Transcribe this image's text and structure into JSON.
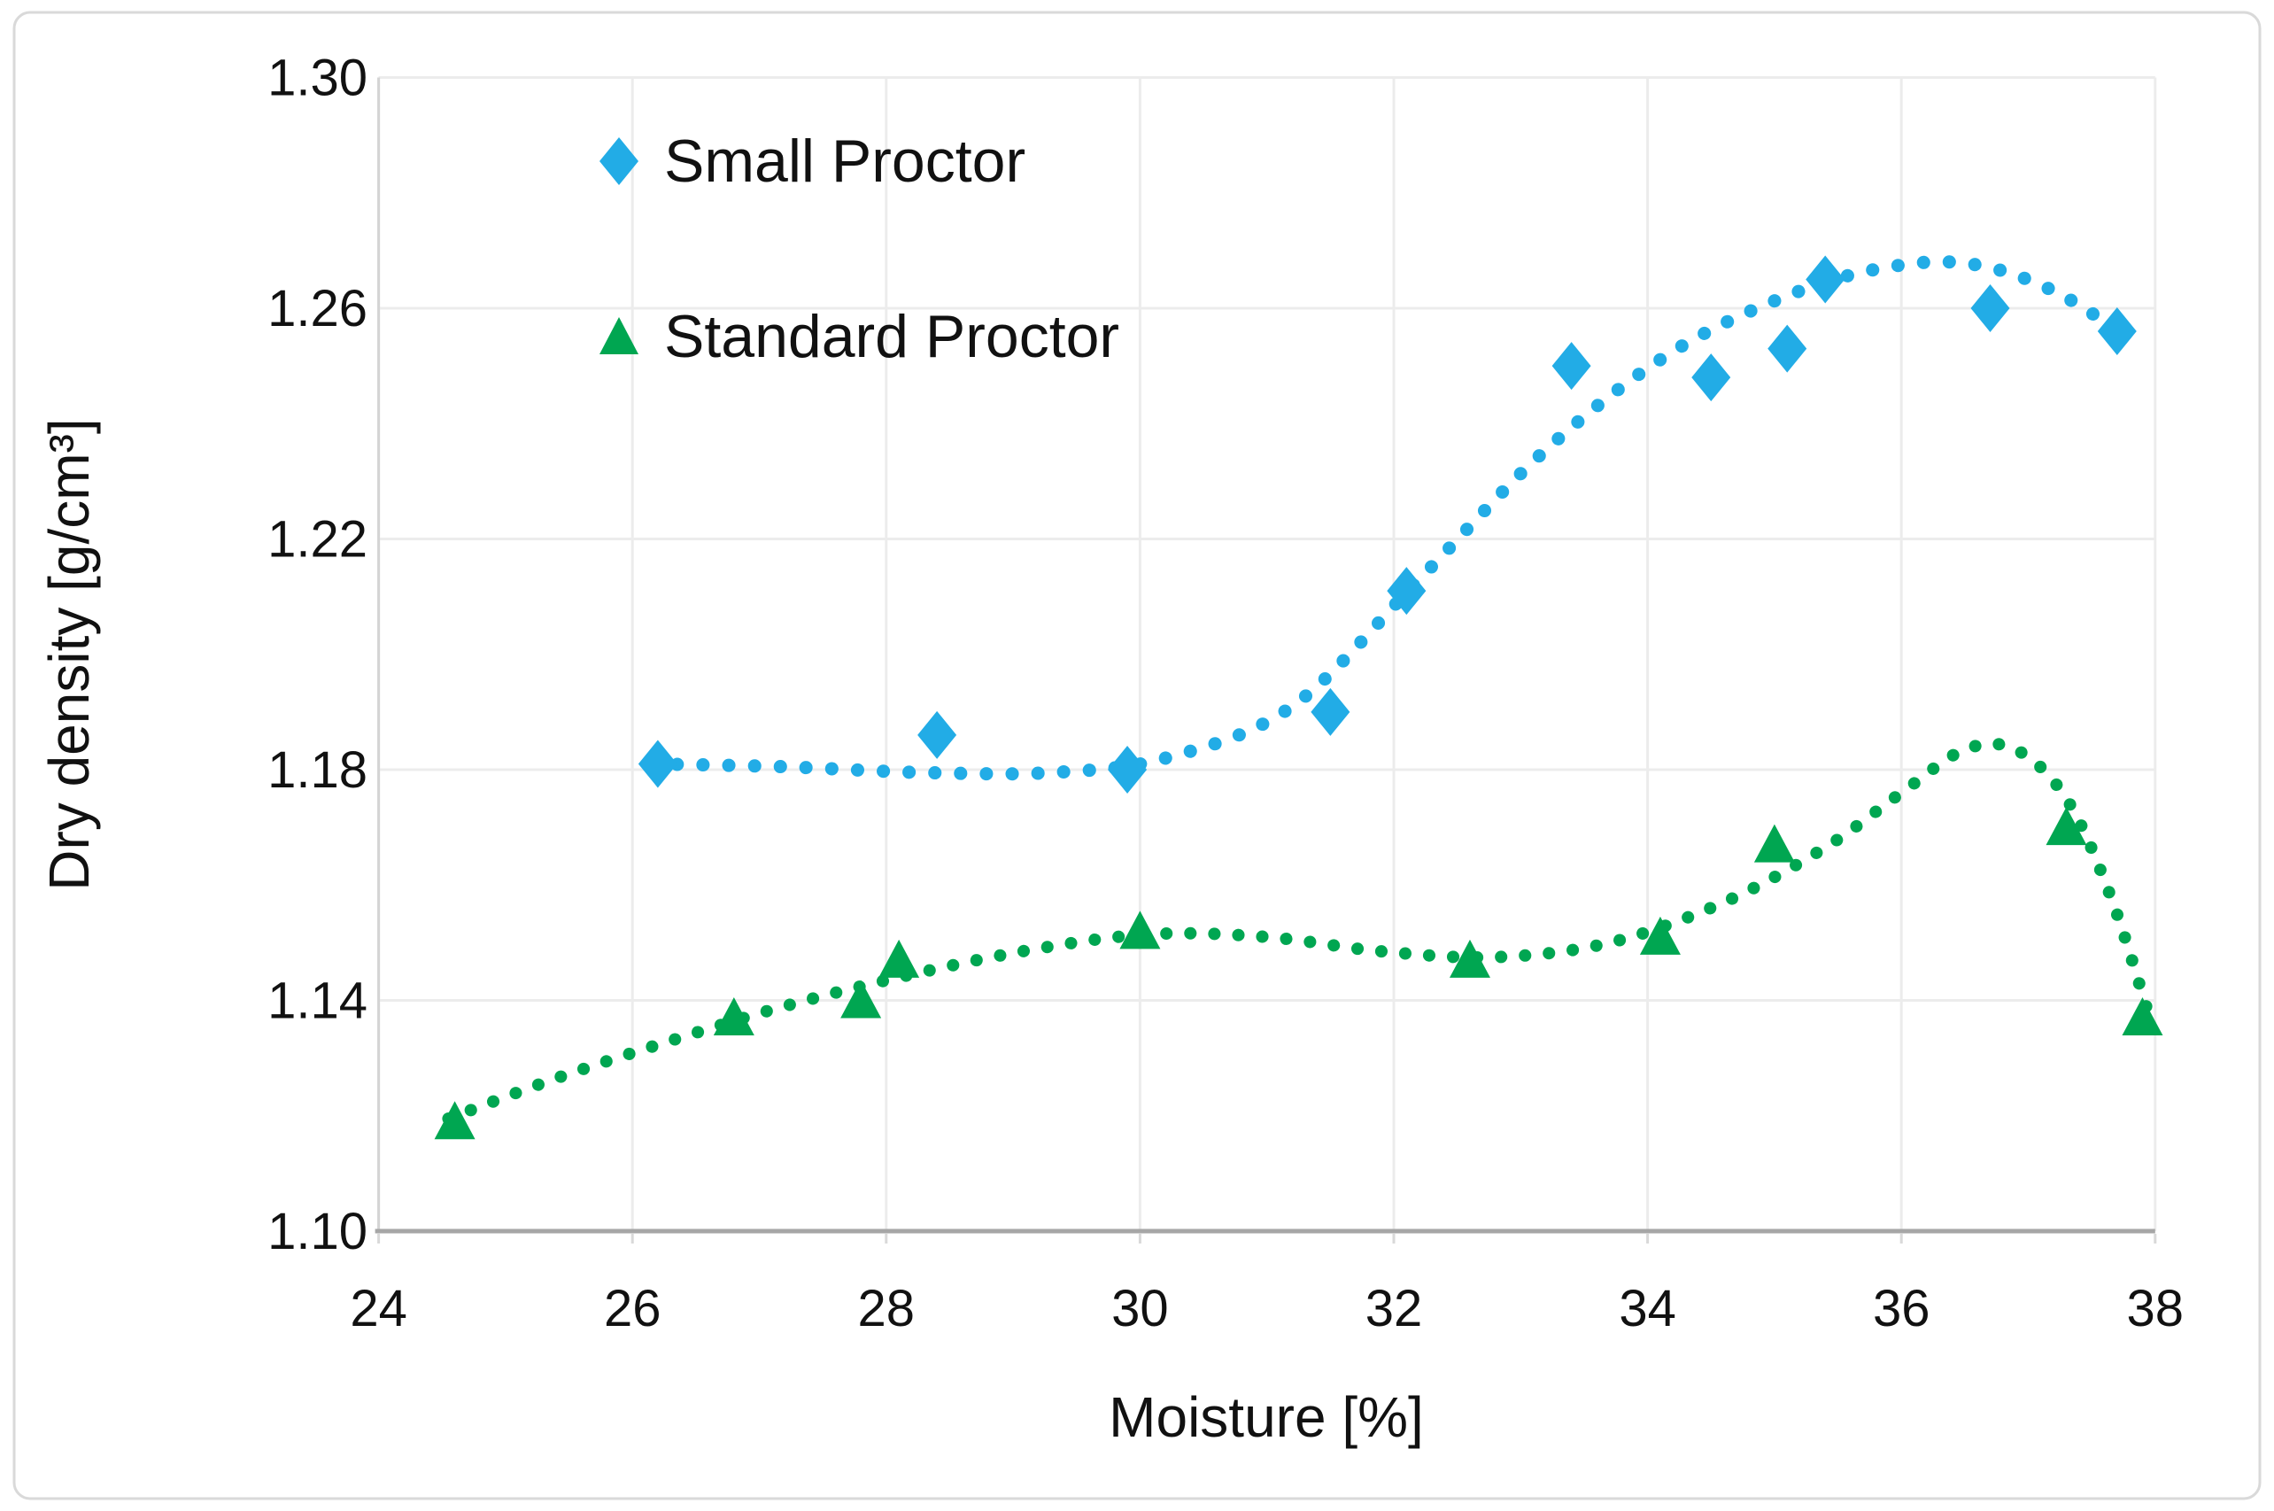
{
  "figure": {
    "background": "#ffffff",
    "border_color": "#d9d9d9"
  },
  "chart_data": {
    "type": "scatter",
    "title": "",
    "xlabel": "Moisture [%]",
    "ylabel": "Dry density [g/cm³]",
    "xlim": [
      24,
      38
    ],
    "ylim": [
      1.1,
      1.3
    ],
    "x_ticks": [
      "24",
      "26",
      "28",
      "30",
      "32",
      "34",
      "36",
      "38"
    ],
    "y_ticks": [
      "1.10",
      "1.14",
      "1.18",
      "1.22",
      "1.26",
      "1.30"
    ],
    "grid": true,
    "legend_position": "inside-top-left",
    "gridline_color": "#ececec",
    "bottom_axis_color": "#a6a6a6",
    "left_axis_color": "#d4d4d4",
    "text_color": "#111111",
    "series": [
      {
        "name": "Small Proctor",
        "color": "#22ace6",
        "marker": "diamond",
        "trendline": "dotted",
        "points": [
          [
            26.2,
            1.181
          ],
          [
            28.4,
            1.186
          ],
          [
            29.9,
            1.18
          ],
          [
            31.5,
            1.19
          ],
          [
            32.1,
            1.211
          ],
          [
            33.4,
            1.25
          ],
          [
            34.5,
            1.248
          ],
          [
            35.1,
            1.253
          ],
          [
            35.4,
            1.265
          ],
          [
            36.7,
            1.26
          ],
          [
            37.7,
            1.256
          ]
        ],
        "trend": [
          [
            26.15,
            1.181
          ],
          [
            27.2,
            1.1805
          ],
          [
            28.3,
            1.1795
          ],
          [
            29.3,
            1.1795
          ],
          [
            30.2,
            1.182
          ],
          [
            31.2,
            1.191
          ],
          [
            32.2,
            1.213
          ],
          [
            33.2,
            1.2355
          ],
          [
            34.2,
            1.2525
          ],
          [
            35.2,
            1.263
          ],
          [
            36.0,
            1.2675
          ],
          [
            36.6,
            1.2675
          ],
          [
            37.2,
            1.263
          ],
          [
            37.75,
            1.2555
          ]
        ]
      },
      {
        "name": "Standard Proctor",
        "color": "#00a651",
        "marker": "triangle",
        "trendline": "dotted",
        "points": [
          [
            24.6,
            1.119
          ],
          [
            26.8,
            1.137
          ],
          [
            27.8,
            1.14
          ],
          [
            28.1,
            1.147
          ],
          [
            30.0,
            1.152
          ],
          [
            32.6,
            1.147
          ],
          [
            34.1,
            1.151
          ],
          [
            35.0,
            1.167
          ],
          [
            37.3,
            1.17
          ],
          [
            37.9,
            1.137
          ]
        ],
        "trend": [
          [
            24.55,
            1.1195
          ],
          [
            25.4,
            1.1265
          ],
          [
            26.3,
            1.133
          ],
          [
            27.2,
            1.139
          ],
          [
            28.2,
            1.1445
          ],
          [
            29.2,
            1.149
          ],
          [
            30.1,
            1.1515
          ],
          [
            31.0,
            1.151
          ],
          [
            31.9,
            1.1485
          ],
          [
            32.8,
            1.1475
          ],
          [
            33.7,
            1.15
          ],
          [
            34.6,
            1.157
          ],
          [
            35.4,
            1.1665
          ],
          [
            36.0,
            1.176
          ],
          [
            36.5,
            1.1835
          ],
          [
            36.9,
            1.1835
          ],
          [
            37.3,
            1.175
          ],
          [
            37.65,
            1.158
          ],
          [
            37.95,
            1.1375
          ]
        ]
      }
    ]
  }
}
